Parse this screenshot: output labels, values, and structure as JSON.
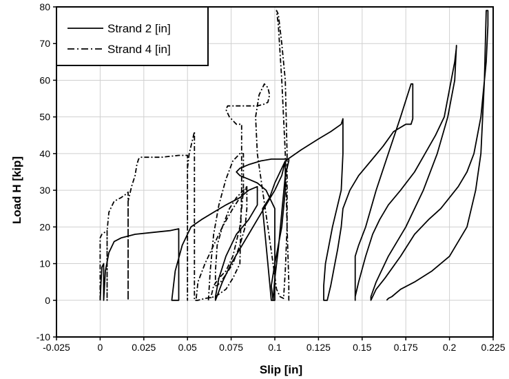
{
  "chart_data": {
    "type": "line",
    "xlabel": "Slip [in]",
    "ylabel": "Load H [kip]",
    "xlim": [
      -0.025,
      0.225
    ],
    "ylim": [
      -10,
      80
    ],
    "x_ticks": [
      -0.025,
      0,
      0.025,
      0.05,
      0.075,
      0.1,
      0.125,
      0.15,
      0.175,
      0.2,
      0.225
    ],
    "x_tick_labels": [
      "-0.025",
      "0",
      "0.025",
      "0.05",
      "0.075",
      "0.1",
      "0.125",
      "0.15",
      "0.175",
      "0.2",
      "0.225"
    ],
    "y_ticks": [
      -10,
      0,
      10,
      20,
      30,
      40,
      50,
      60,
      70,
      80
    ],
    "y_tick_labels": [
      "-10",
      "0",
      "10",
      "20",
      "30",
      "40",
      "50",
      "60",
      "70",
      "80"
    ],
    "grid": true,
    "legend_position": "top-left",
    "series": [
      {
        "name": "Strand 2 [in]",
        "style": "solid",
        "x": [
          0,
          0.0005,
          0.001,
          0.002,
          0.002,
          0.003,
          0.005,
          0.008,
          0.012,
          0.02,
          0.03,
          0.04,
          0.045,
          0.045,
          0.043,
          0.041,
          0.043,
          0.047,
          0.052,
          0.058,
          0.065,
          0.072,
          0.08,
          0.085,
          0.09,
          0.09,
          0.085,
          0.078,
          0.072,
          0.068,
          0.066,
          0.066,
          0.07,
          0.075,
          0.08,
          0.085,
          0.09,
          0.095,
          0.1,
          0.104,
          0.106,
          0.106,
          0.104,
          0.1,
          0.098,
          0.099,
          0.1,
          0.102,
          0.104,
          0.106,
          0.108,
          0.108,
          0.104,
          0.098,
          0.092,
          0.085,
          0.08,
          0.078,
          0.08,
          0.085,
          0.09,
          0.095,
          0.1,
          0.1,
          0.098,
          0.096,
          0.094,
          0.093,
          0.097,
          0.1,
          0.106,
          0.115,
          0.125,
          0.132,
          0.138,
          0.139,
          0.139,
          0.138,
          0.133,
          0.129,
          0.128,
          0.128,
          0.13,
          0.132,
          0.134,
          0.136,
          0.138,
          0.139,
          0.143,
          0.148,
          0.155,
          0.162,
          0.168,
          0.175,
          0.178,
          0.179,
          0.179,
          0.178,
          0.172,
          0.165,
          0.158,
          0.152,
          0.148,
          0.146,
          0.146,
          0.146,
          0.148,
          0.152,
          0.156,
          0.16,
          0.165,
          0.172,
          0.18,
          0.186,
          0.192,
          0.197,
          0.201,
          0.203,
          0.204,
          0.204,
          0.203,
          0.199,
          0.193,
          0.185,
          0.175,
          0.165,
          0.158,
          0.155,
          0.155,
          0.156,
          0.158,
          0.163,
          0.172,
          0.18,
          0.188,
          0.195,
          0.2,
          0.205,
          0.21,
          0.214,
          0.218,
          0.221,
          0.222,
          0.222,
          0.221,
          0.22,
          0.218,
          0.215,
          0.21,
          0.2,
          0.19,
          0.18,
          0.172,
          0.167,
          0.165,
          0.164
        ],
        "y": [
          0,
          5,
          9,
          10,
          0,
          8,
          13,
          16,
          17,
          18,
          18.5,
          19,
          19.5,
          0,
          0,
          0,
          8,
          15,
          20,
          22,
          24,
          26,
          28,
          30,
          31,
          26,
          22,
          18,
          12,
          6,
          1,
          0,
          5,
          10,
          14,
          18,
          22,
          26,
          30,
          34,
          38,
          30,
          20,
          10,
          4,
          0,
          6,
          14,
          24,
          34,
          38,
          38.5,
          38.5,
          38.5,
          38,
          37,
          36,
          35,
          34,
          33,
          32,
          30,
          25,
          0,
          0,
          10,
          20,
          25,
          28,
          32,
          38,
          41,
          44,
          46,
          48,
          49.5,
          40,
          30,
          20,
          10,
          4,
          0,
          0,
          4,
          9,
          14,
          20,
          25,
          30,
          34,
          38,
          42,
          46,
          48,
          48,
          49.5,
          59,
          59,
          50,
          40,
          30,
          20,
          15,
          12,
          0,
          1,
          5,
          12,
          18,
          22,
          26,
          30,
          35,
          40,
          45,
          50,
          60,
          65,
          69,
          69.5,
          60,
          50,
          40,
          30,
          20,
          12,
          5,
          1,
          0,
          1,
          3,
          6,
          12,
          18,
          22,
          25,
          28,
          31,
          35,
          40,
          50,
          65,
          75,
          79,
          79,
          60,
          40,
          30,
          20,
          12,
          8,
          5,
          3,
          1,
          0.5,
          0
        ],
        "x_resolved": [
          0,
          0.0005,
          0.001,
          0.002,
          0.002,
          0.003,
          0.005,
          0.008,
          0.012,
          0.02,
          0.03,
          0.04,
          0.045,
          0.045,
          0.043,
          0.041,
          0.043,
          0.047,
          0.052,
          0.058,
          0.065,
          0.072,
          0.08,
          0.085,
          0.09,
          0.09,
          0.085,
          0.078,
          0.072,
          0.068,
          0.066,
          0.066,
          0.07,
          0.075,
          0.08,
          0.085,
          0.09,
          0.095,
          0.1,
          0.104,
          0.106,
          0.106,
          0.104,
          0.1,
          0.098,
          0.099,
          0.1,
          0.102,
          0.104,
          0.106,
          0.108,
          0.108,
          0.104,
          0.098,
          0.092,
          0.085,
          0.08,
          0.078,
          0.08,
          0.085,
          0.09,
          0.095,
          0.1,
          0.1,
          0.098,
          0.096,
          0.094,
          0.093,
          0.097,
          0.1,
          0.106,
          0.115,
          0.125,
          0.132,
          0.138,
          0.139,
          0.139,
          0.138,
          0.133,
          0.129,
          0.128,
          0.128,
          0.13,
          0.132,
          0.134,
          0.136,
          0.138,
          0.139,
          0.143,
          0.148,
          0.155,
          0.162,
          0.168,
          0.175,
          0.178,
          0.179,
          0.179,
          0.178,
          0.172,
          0.165,
          0.158,
          0.152,
          0.148,
          0.146,
          0.146,
          0.146,
          0.148,
          0.152,
          0.156,
          0.16,
          0.165,
          0.172,
          0.18,
          0.186,
          0.192,
          0.197,
          0.201,
          0.203,
          0.204,
          0.204,
          0.203,
          0.199,
          0.193,
          0.185,
          0.175,
          0.165,
          0.158,
          0.155,
          0.155,
          0.156,
          0.158,
          0.163,
          0.172,
          0.18,
          0.188,
          0.195,
          0.2,
          0.205,
          0.21,
          0.214,
          0.218,
          0.221,
          0.222,
          0.222,
          0.221,
          0.22,
          0.218,
          0.215,
          0.21,
          0.2,
          0.19,
          0.18,
          0.172,
          0.167,
          0.165,
          0.164
        ]
      },
      {
        "name": "Strand 4 [in]",
        "style": "dashdot",
        "x": [
          0,
          0,
          0.001,
          0.004,
          0.004,
          0.004,
          0.005,
          0.008,
          0.012,
          0.015,
          0.016,
          0.016,
          0.016,
          0.018,
          0.02,
          0.021,
          0.022,
          0.023,
          0.035,
          0.045,
          0.05,
          0.05,
          0.05,
          0.051,
          0.053,
          0.054,
          0.054,
          0.054,
          0.056,
          0.06,
          0.066,
          0.072,
          0.076,
          0.08,
          0.081,
          0.081,
          0.078,
          0.074,
          0.072,
          0.073,
          0.076,
          0.079,
          0.082,
          0.086,
          0.09,
          0.094,
          0.096,
          0.097,
          0.096,
          0.094,
          0.091,
          0.089,
          0.09,
          0.093,
          0.096,
          0.099,
          0.101,
          0.103,
          0.105,
          0.106,
          0.107,
          0.107,
          0.106,
          0.104,
          0.102,
          0.101,
          0.102,
          0.104,
          0.106,
          0.107,
          0.108,
          0.108,
          0.107
        ],
        "y": [
          0,
          17,
          18,
          19,
          0,
          19,
          24,
          27,
          28,
          29,
          29.5,
          0,
          27,
          31,
          34,
          37,
          38.5,
          39,
          39,
          39.5,
          39.5,
          0,
          36,
          40,
          44,
          46,
          1,
          0,
          0,
          0.5,
          1,
          3,
          6,
          10,
          30,
          48,
          48,
          50,
          52,
          53,
          53,
          53,
          53,
          53,
          53,
          53.5,
          54,
          56,
          58,
          59,
          56,
          50,
          40,
          30,
          20,
          10,
          3,
          1,
          0.5,
          8,
          20,
          40,
          60,
          70,
          78,
          79,
          75,
          60,
          40,
          20,
          5,
          0,
          0
        ],
        "x_resolved": [
          0,
          0,
          0.001,
          0.004,
          0.004,
          0.004,
          0.005,
          0.008,
          0.012,
          0.015,
          0.016,
          0.016,
          0.016,
          0.018,
          0.02,
          0.021,
          0.022,
          0.023,
          0.035,
          0.045,
          0.05,
          0.05,
          0.05,
          0.051,
          0.053,
          0.054,
          0.054,
          0.054,
          0.056,
          0.06,
          0.066,
          0.072,
          0.076,
          0.08,
          0.081,
          0.081,
          0.078,
          0.074,
          0.072,
          0.073,
          0.076,
          0.079,
          0.082,
          0.086,
          0.09,
          0.094,
          0.096,
          0.097,
          0.096,
          0.094,
          0.091,
          0.089,
          0.09,
          0.093,
          0.096,
          0.099,
          0.101,
          0.103,
          0.105,
          0.106,
          0.107,
          0.107,
          0.106,
          0.104,
          0.102,
          0.101,
          0.102,
          0.104,
          0.106,
          0.107,
          0.108,
          0.108,
          0.107
        ]
      }
    ],
    "series_extra": [
      {
        "name": "",
        "style": "dashdot",
        "x": [
          0.055,
          0.056,
          0.06,
          0.065,
          0.07,
          0.076,
          0.08,
          0.083,
          0.084,
          0.084,
          0.083,
          0.08,
          0.076,
          0.072,
          0.069,
          0.067,
          0.066,
          0.066,
          0.067,
          0.07,
          0.074,
          0.078,
          0.082,
          0.084
        ],
        "y": [
          0.5,
          5,
          10,
          15,
          20,
          25,
          28,
          30,
          31,
          25,
          20,
          15,
          10,
          7,
          5,
          4,
          4,
          8,
          15,
          20,
          25,
          28,
          30,
          31
        ]
      },
      {
        "name": "",
        "style": "dashdot",
        "x": [
          0.062,
          0.063,
          0.065,
          0.068,
          0.072,
          0.076,
          0.08,
          0.082,
          0.082,
          0.08,
          0.076,
          0.072,
          0.068,
          0.065,
          0.063
        ],
        "y": [
          0,
          8,
          18,
          26,
          33,
          38,
          40,
          40,
          30,
          20,
          12,
          8,
          6,
          4,
          0
        ]
      }
    ]
  }
}
